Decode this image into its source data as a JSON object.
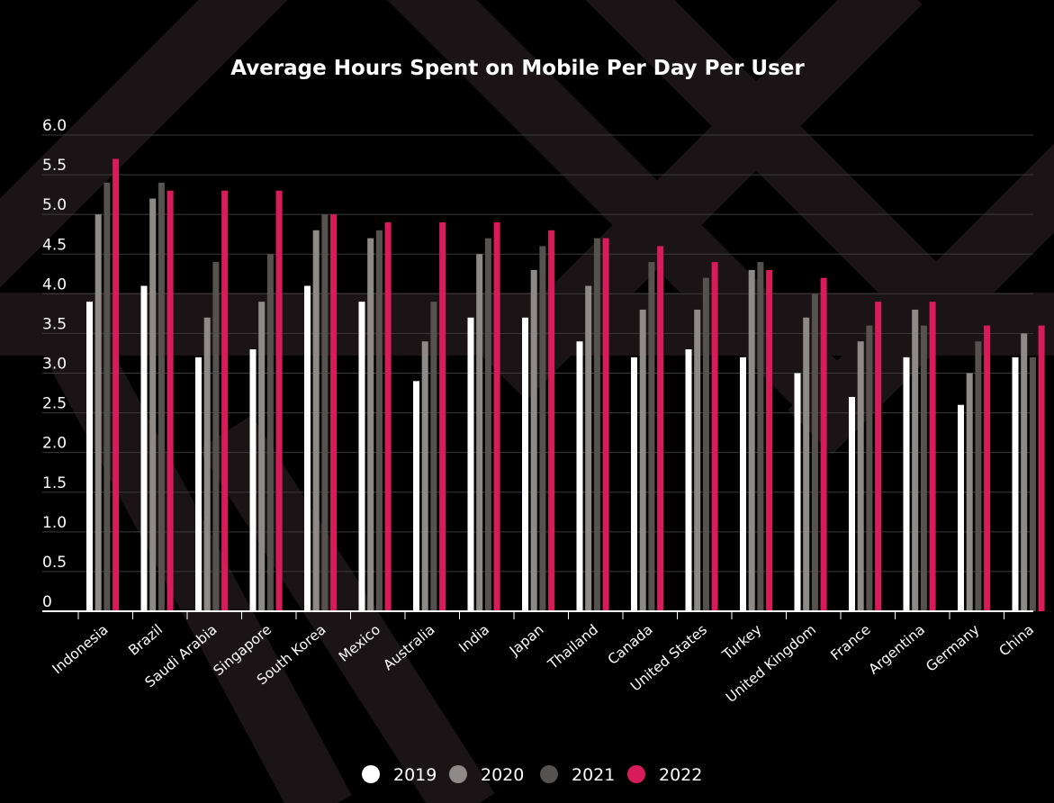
{
  "chart_data": {
    "type": "bar",
    "title": "Average Hours Spent on Mobile Per Day Per User",
    "xlabel": "",
    "ylabel": "",
    "ylim": [
      0,
      6.0
    ],
    "yticks": [
      "0",
      "0.5",
      "1.0",
      "1.5",
      "2.0",
      "2.5",
      "3.0",
      "3.5",
      "4.0",
      "4.5",
      "5.0",
      "5.5",
      "6.0"
    ],
    "grid": true,
    "legend_position": "bottom-center",
    "categories": [
      "Indonesia",
      "Brazil",
      "Saudi Arabia",
      "Singapore",
      "South Korea",
      "Mexico",
      "Australia",
      "India",
      "Japan",
      "Thailand",
      "Canada",
      "United States",
      "Turkey",
      "United Kingdom",
      "France",
      "Argentina",
      "Germany",
      "China"
    ],
    "series": [
      {
        "name": "2019",
        "color": "#ffffff",
        "values": [
          3.9,
          4.1,
          3.2,
          3.3,
          4.1,
          3.9,
          2.9,
          3.7,
          3.7,
          3.4,
          3.2,
          3.3,
          3.2,
          3.0,
          2.7,
          3.2,
          2.6,
          3.2
        ]
      },
      {
        "name": "2020",
        "color": "#8e8a87",
        "values": [
          5.0,
          5.2,
          3.7,
          3.9,
          4.8,
          4.7,
          3.4,
          4.5,
          4.3,
          4.1,
          3.8,
          3.8,
          4.3,
          3.7,
          3.4,
          3.8,
          3.0,
          3.5
        ]
      },
      {
        "name": "2021",
        "color": "#56524f",
        "values": [
          5.4,
          5.4,
          4.4,
          4.5,
          5.0,
          4.8,
          3.9,
          4.7,
          4.6,
          4.7,
          4.4,
          4.2,
          4.4,
          4.0,
          3.6,
          3.6,
          3.4,
          3.2
        ]
      },
      {
        "name": "2022",
        "color": "#d81b5a",
        "values": [
          5.7,
          5.3,
          5.3,
          5.3,
          5.0,
          4.9,
          4.9,
          4.9,
          4.8,
          4.7,
          4.6,
          4.4,
          4.3,
          4.2,
          3.9,
          3.9,
          3.6,
          3.6
        ]
      }
    ]
  }
}
